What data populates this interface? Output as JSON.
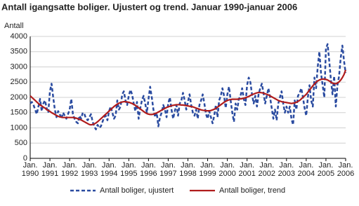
{
  "chart_data": {
    "type": "line",
    "title": "Antall igangsatte boliger. Ujustert og trend. Januar 1990-januar 2006",
    "y_label": "Antall",
    "ylim": [
      0,
      4000
    ],
    "yticks": [
      0,
      500,
      1000,
      1500,
      2000,
      2500,
      3000,
      3500,
      4000
    ],
    "grid": true,
    "categories": [
      "Jan. 1990",
      null,
      null,
      null,
      null,
      null,
      null,
      null,
      null,
      null,
      null,
      null,
      "Jan. 1991",
      null,
      null,
      null,
      null,
      null,
      null,
      null,
      null,
      null,
      null,
      null,
      "Jan. 1992",
      null,
      null,
      null,
      null,
      null,
      null,
      null,
      null,
      null,
      null,
      null,
      "Jan. 1993",
      null,
      null,
      null,
      null,
      null,
      null,
      null,
      null,
      null,
      null,
      null,
      "Jan. 1994",
      null,
      null,
      null,
      null,
      null,
      null,
      null,
      null,
      null,
      null,
      null,
      "Jan. 1995",
      null,
      null,
      null,
      null,
      null,
      null,
      null,
      null,
      null,
      null,
      null,
      "Jan. 1996",
      null,
      null,
      null,
      null,
      null,
      null,
      null,
      null,
      null,
      null,
      null,
      "Jan. 1997",
      null,
      null,
      null,
      null,
      null,
      null,
      null,
      null,
      null,
      null,
      null,
      "Jan. 1998",
      null,
      null,
      null,
      null,
      null,
      null,
      null,
      null,
      null,
      null,
      null,
      "Jan. 1999",
      null,
      null,
      null,
      null,
      null,
      null,
      null,
      null,
      null,
      null,
      null,
      "Jan. 2000",
      null,
      null,
      null,
      null,
      null,
      null,
      null,
      null,
      null,
      null,
      null,
      "Jan. 2001",
      null,
      null,
      null,
      null,
      null,
      null,
      null,
      null,
      null,
      null,
      null,
      "Jan. 2002",
      null,
      null,
      null,
      null,
      null,
      null,
      null,
      null,
      null,
      null,
      null,
      "Jan. 2003",
      null,
      null,
      null,
      null,
      null,
      null,
      null,
      null,
      null,
      null,
      null,
      "Jan. 2004",
      null,
      null,
      null,
      null,
      null,
      null,
      null,
      null,
      null,
      null,
      null,
      "Jan. 2005",
      null,
      null,
      null,
      null,
      null,
      null,
      null,
      null,
      null,
      null,
      null,
      "Jan. 2006"
    ],
    "series": [
      {
        "name": "Antall boliger, ujustert",
        "color": "#2a4ba0",
        "dashed": true,
        "values": [
          1800,
          1850,
          1750,
          1600,
          1450,
          1700,
          1950,
          1550,
          1800,
          1900,
          1650,
          1500,
          2200,
          2450,
          2000,
          1600,
          1350,
          1550,
          1450,
          1300,
          1500,
          1400,
          1300,
          1450,
          1600,
          1950,
          1450,
          1300,
          1200,
          1150,
          1400,
          1300,
          1500,
          1450,
          1300,
          1250,
          1350,
          1450,
          1200,
          1050,
          950,
          1100,
          1000,
          1050,
          1200,
          1350,
          1400,
          1250,
          1550,
          1700,
          1500,
          1300,
          1400,
          1900,
          1600,
          1700,
          2100,
          2200,
          1900,
          1750,
          2050,
          2250,
          2100,
          1800,
          1550,
          1850,
          1300,
          1650,
          1900,
          2050,
          1800,
          1500,
          1950,
          2350,
          2000,
          1600,
          1350,
          1500,
          1050,
          1350,
          1500,
          1750,
          1600,
          1350,
          1800,
          2000,
          1600,
          1300,
          1550,
          1750,
          1400,
          1800,
          1900,
          2150,
          1900,
          1600,
          1850,
          2100,
          1750,
          1500,
          1400,
          1600,
          1300,
          1750,
          1900,
          2100,
          1800,
          1450,
          1300,
          1550,
          1350,
          1150,
          1400,
          1750,
          1350,
          1900,
          2050,
          2300,
          2050,
          1650,
          2100,
          2350,
          1900,
          1500,
          1200,
          1800,
          1600,
          1950,
          2050,
          2300,
          1950,
          1750,
          2400,
          2650,
          2500,
          2100,
          1800,
          2050,
          1700,
          2100,
          2300,
          2450,
          2150,
          1800,
          2050,
          2300,
          2000,
          1650,
          1300,
          1600,
          1250,
          1800,
          2000,
          2200,
          1800,
          1500,
          1700,
          1500,
          1700,
          1300,
          1100,
          1900,
          1600,
          2050,
          2150,
          2300,
          2000,
          1650,
          1400,
          2000,
          2400,
          1900,
          1700,
          2650,
          2300,
          3000,
          3500,
          2800,
          2400,
          2000,
          3600,
          3750,
          3200,
          2600,
          2100,
          2700,
          1700,
          2400,
          2700,
          3300,
          3700,
          3200,
          2800
        ]
      },
      {
        "name": "Antall boliger, trend",
        "color": "#b01c1c",
        "dashed": false,
        "values": [
          2050,
          2000,
          1950,
          1900,
          1850,
          1800,
          1750,
          1720,
          1680,
          1650,
          1600,
          1570,
          1540,
          1500,
          1470,
          1440,
          1410,
          1380,
          1360,
          1350,
          1340,
          1340,
          1340,
          1340,
          1340,
          1340,
          1340,
          1330,
          1320,
          1300,
          1280,
          1260,
          1230,
          1200,
          1170,
          1140,
          1110,
          1100,
          1110,
          1130,
          1160,
          1200,
          1250,
          1300,
          1350,
          1400,
          1450,
          1500,
          1550,
          1600,
          1650,
          1700,
          1740,
          1780,
          1810,
          1830,
          1850,
          1860,
          1860,
          1850,
          1840,
          1820,
          1800,
          1770,
          1740,
          1700,
          1660,
          1620,
          1580,
          1540,
          1500,
          1470,
          1450,
          1440,
          1440,
          1450,
          1470,
          1490,
          1520,
          1550,
          1580,
          1610,
          1640,
          1670,
          1690,
          1710,
          1730,
          1740,
          1750,
          1760,
          1760,
          1760,
          1750,
          1750,
          1740,
          1730,
          1720,
          1710,
          1700,
          1690,
          1670,
          1650,
          1630,
          1610,
          1590,
          1580,
          1570,
          1560,
          1560,
          1560,
          1570,
          1590,
          1610,
          1640,
          1680,
          1720,
          1760,
          1800,
          1840,
          1870,
          1900,
          1920,
          1930,
          1940,
          1940,
          1940,
          1940,
          1950,
          1950,
          1960,
          1970,
          1990,
          2010,
          2030,
          2060,
          2090,
          2110,
          2130,
          2150,
          2160,
          2160,
          2150,
          2140,
          2120,
          2100,
          2080,
          2050,
          2020,
          1990,
          1960,
          1930,
          1900,
          1880,
          1860,
          1850,
          1840,
          1830,
          1820,
          1810,
          1800,
          1810,
          1820,
          1840,
          1870,
          1900,
          1950,
          2000,
          2050,
          2100,
          2170,
          2240,
          2310,
          2380,
          2440,
          2500,
          2540,
          2570,
          2590,
          2600,
          2600,
          2590,
          2570,
          2540,
          2500,
          2470,
          2450,
          2450,
          2470,
          2510,
          2570,
          2650,
          2750,
          2900
        ]
      }
    ]
  }
}
